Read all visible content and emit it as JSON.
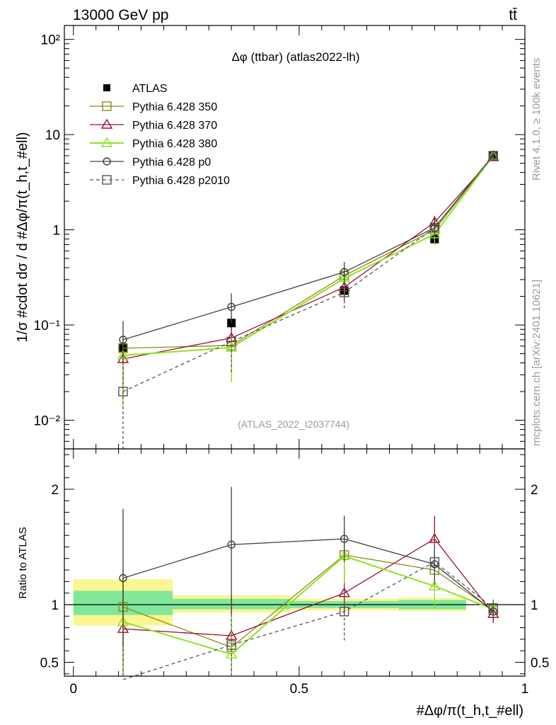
{
  "header": {
    "energy": "13000 GeV pp",
    "process": "tt̄"
  },
  "side": {
    "rivet": "Rivet 4.1.0, ≥ 100k events",
    "mcplots": "mcplots.cern.ch [arXiv:2401.10621]"
  },
  "colors": {
    "ATLAS": "#000000",
    "p350": "#8b8b1a",
    "p370": "#9b0f2f",
    "p380": "#8ee21e",
    "p0": "#404040",
    "p2010": "#555555",
    "band_stat": "#7fe89b",
    "band_tot": "#fbf592"
  },
  "chart_data": [
    {
      "type": "line",
      "panel": "main",
      "title": "Δφ (ttbar) (atlas2022-lh)",
      "watermark": "(ATLAS_2022_I2037744)",
      "ylabel": "1/σ #cdot dσ / d #Δφ/π(t_h,t_#ell)",
      "yscale": "log",
      "ylim": [
        0.005,
        140
      ],
      "xlim": [
        -0.02,
        1.0
      ],
      "ytick_labels": [
        "10⁻²",
        "10⁻¹",
        "1",
        "10",
        "10²"
      ],
      "x": [
        0.11,
        0.35,
        0.6,
        0.8,
        0.93
      ],
      "series": [
        {
          "name": "ATLAS",
          "marker": "square-filled",
          "values": [
            0.058,
            0.105,
            0.23,
            0.8,
            6.0
          ],
          "err_lo": [
            0.01,
            0.015,
            0.03,
            0.1,
            0.5
          ],
          "err_hi": [
            0.01,
            0.015,
            0.03,
            0.1,
            0.5
          ]
        },
        {
          "name": "Pythia 6.428 350",
          "marker": "square-open",
          "values": [
            0.057,
            0.061,
            0.33,
            1.0,
            6.0
          ],
          "err_lo": [
            0.04,
            0.035,
            0.1,
            0.2,
            0.5
          ],
          "err_hi": [
            0.02,
            0.02,
            0.08,
            0.2,
            0.5
          ]
        },
        {
          "name": "Pythia 6.428 370",
          "marker": "triangle-open",
          "values": [
            0.044,
            0.073,
            0.25,
            1.2,
            5.8
          ],
          "err_lo": [
            0.025,
            0.04,
            0.08,
            0.2,
            0.5
          ],
          "err_hi": [
            0.02,
            0.02,
            0.08,
            0.2,
            0.5
          ]
        },
        {
          "name": "Pythia 6.428 380",
          "marker": "triangle-open",
          "values": [
            0.048,
            0.058,
            0.31,
            0.9,
            6.0
          ],
          "err_lo": [
            0.035,
            0.033,
            0.1,
            0.2,
            0.5
          ],
          "err_hi": [
            0.02,
            0.02,
            0.1,
            0.2,
            0.5
          ]
        },
        {
          "name": "Pythia 6.428 p0",
          "marker": "circle-open",
          "values": [
            0.07,
            0.155,
            0.36,
            1.05,
            6.1
          ],
          "err_lo": [
            0.03,
            0.05,
            0.1,
            0.2,
            0.5
          ],
          "err_hi": [
            0.04,
            0.06,
            0.1,
            0.2,
            0.5
          ]
        },
        {
          "name": "Pythia 6.428 p2010",
          "marker": "square-open",
          "dashed": true,
          "values": [
            0.02,
            0.067,
            0.22,
            1.05,
            6.0
          ],
          "err_lo": [
            0.018,
            0.035,
            0.07,
            0.2,
            0.5
          ],
          "err_hi": [
            0.02,
            0.02,
            0.07,
            0.2,
            0.5
          ]
        }
      ]
    },
    {
      "type": "line",
      "panel": "ratio",
      "ylabel": "Ratio to ATLAS",
      "xlabel": "#Δφ/π(t_h,t_#ell)",
      "ylim": [
        0.38,
        2.35
      ],
      "xlim": [
        -0.02,
        1.0
      ],
      "ytick_labels": [
        "0.5",
        "1",
        "2"
      ],
      "xtick_labels": [
        "0",
        "0.5",
        "1"
      ],
      "x": [
        0.11,
        0.35,
        0.6,
        0.8,
        0.93
      ],
      "bands": [
        {
          "x0": 0.0,
          "x1": 0.22,
          "stat_lo": 0.91,
          "stat_hi": 1.12,
          "tot_lo": 0.82,
          "tot_hi": 1.22
        },
        {
          "x0": 0.22,
          "x1": 0.48,
          "stat_lo": 0.96,
          "stat_hi": 1.05,
          "tot_lo": 0.93,
          "tot_hi": 1.08
        },
        {
          "x0": 0.48,
          "x1": 0.72,
          "stat_lo": 0.97,
          "stat_hi": 1.03,
          "tot_lo": 0.95,
          "tot_hi": 1.05
        },
        {
          "x0": 0.72,
          "x1": 0.87,
          "stat_lo": 0.96,
          "stat_hi": 1.04,
          "tot_lo": 0.94,
          "tot_hi": 1.06
        }
      ],
      "series": [
        {
          "name": "Pythia 6.428 350",
          "marker": "square-open",
          "values": [
            0.98,
            0.63,
            1.43,
            1.3,
            0.95
          ],
          "err_lo": [
            0.5,
            0.35,
            0.2,
            0.15,
            0.08
          ],
          "err_hi": [
            0.35,
            0.35,
            0.2,
            0.15,
            0.08
          ]
        },
        {
          "name": "Pythia 6.428 370",
          "marker": "triangle-open",
          "values": [
            0.79,
            0.73,
            1.1,
            1.57,
            0.92
          ],
          "err_lo": [
            0.45,
            0.4,
            0.2,
            0.2,
            0.08
          ],
          "err_hi": [
            0.35,
            0.35,
            0.2,
            0.2,
            0.08
          ]
        },
        {
          "name": "Pythia 6.428 380",
          "marker": "triangle-open",
          "values": [
            0.85,
            0.57,
            1.42,
            1.16,
            0.96
          ],
          "err_lo": [
            0.5,
            0.35,
            0.25,
            0.2,
            0.08
          ],
          "err_hi": [
            0.4,
            0.35,
            0.25,
            0.2,
            0.08
          ]
        },
        {
          "name": "Pythia 6.428 p0",
          "marker": "circle-open",
          "values": [
            1.23,
            1.52,
            1.57,
            1.35,
            0.94
          ],
          "err_lo": [
            0.6,
            0.5,
            0.2,
            0.15,
            0.08
          ],
          "err_hi": [
            0.6,
            0.5,
            0.2,
            0.15,
            0.08
          ]
        },
        {
          "name": "Pythia 6.428 p2010",
          "marker": "square-open",
          "dashed": true,
          "values": [
            0.35,
            0.65,
            0.94,
            1.37,
            0.97
          ],
          "err_lo": [
            0.3,
            0.3,
            0.25,
            0.2,
            0.08
          ],
          "err_hi": [
            0.3,
            0.3,
            0.25,
            0.2,
            0.08
          ]
        }
      ]
    }
  ]
}
